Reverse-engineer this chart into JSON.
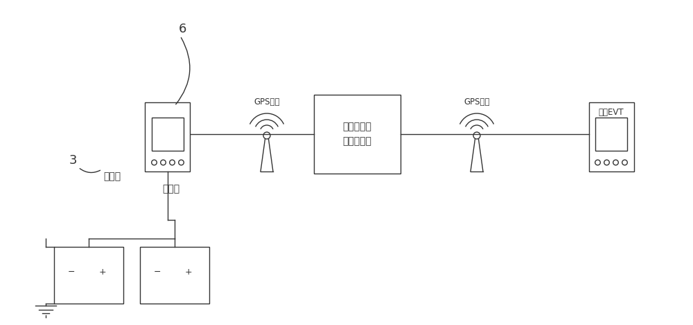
{
  "bg_color": "#ffffff",
  "line_color": "#333333",
  "label_6": "6",
  "label_3": "3",
  "label_display": "显示屏",
  "label_battery": "蓄电池",
  "label_server": "挖掘机控制\n中心服务器",
  "label_phone": "手机EVT",
  "label_gps1": "GPS信号",
  "label_gps2": "GPS信号",
  "font_size_label": 10,
  "font_size_num": 13
}
